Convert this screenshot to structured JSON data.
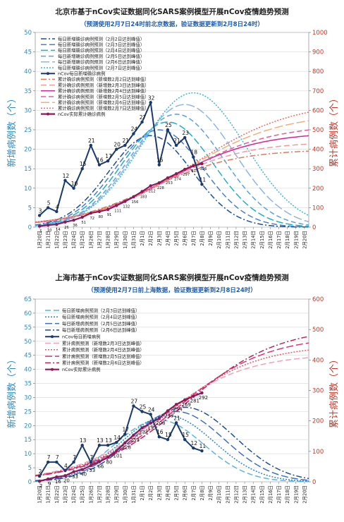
{
  "chart_data": [
    {
      "type": "line",
      "title": "北京市基于nCov实证数据同化SARS案例模型开展nCov疫情趋势预测",
      "subtitle": "（预测使用2月7日24时前北京数据，验证数据更新到2月8日24时）",
      "ylabel_left": "新增病例数（个）",
      "ylabel_right": "累计病例数（个）",
      "ylim_left": [
        0,
        50
      ],
      "yticks_left": [
        0,
        5,
        10,
        15,
        20,
        25,
        30,
        35,
        40,
        45,
        50
      ],
      "ylim_right": [
        0,
        1000
      ],
      "yticks_right": [
        0,
        100,
        200,
        300,
        400,
        500,
        600,
        700,
        800,
        900,
        1000
      ],
      "colors": {
        "left_axis": "#2e8bc0",
        "right_axis": "#c0392b"
      },
      "categories": [
        "1月20日",
        "1月21日",
        "1月22日",
        "1月23日",
        "1月24日",
        "1月25日",
        "1月26日",
        "1月27日",
        "1月28日",
        "1月29日",
        "1月30日",
        "1月31日",
        "2月1日",
        "2月2日",
        "2月3日",
        "2月4日",
        "2月5日",
        "2月6日",
        "2月7日",
        "2月8日",
        "2月9日",
        "2月10日",
        "2月11日",
        "2月12日",
        "2月13日",
        "2月14日",
        "2月15日",
        "2月16日",
        "2月17日",
        "2月18日",
        "2月19日",
        "2月20日"
      ],
      "actual_daily": {
        "name": "nCov每日新增确诊病例",
        "values": [
          3,
          5,
          4,
          12,
          10,
          15,
          21,
          16,
          17,
          20,
          21,
          24,
          27,
          32,
          16,
          25,
          21,
          23,
          18,
          11
        ],
        "labels": [
          "3",
          "5",
          "4",
          "12",
          "10",
          "15",
          "21",
          "16",
          "17",
          "20",
          "21",
          "24",
          "27",
          "32",
          "16",
          "25",
          "21",
          "23",
          "18",
          "11"
        ]
      },
      "actual_cumulative": {
        "name": "nCov实际累计确诊病例",
        "values": [
          5,
          10,
          14,
          26,
          36,
          51,
          72,
          80,
          91,
          111,
          132,
          156,
          183,
          212,
          228,
          253,
          274,
          297,
          315,
          326
        ],
        "labels": [
          "5",
          "10",
          "14",
          "26",
          "36",
          "51",
          "72",
          "80",
          "91",
          "111",
          "132",
          "156",
          "183",
          "212",
          "228",
          "253",
          "274",
          "297",
          "315",
          "326"
        ]
      },
      "series": [
        {
          "name": "每日新增确诊病例预测（2月2日达到峰值）",
          "axis": "left",
          "color": "#1a4f9c",
          "dash": "8 3 2 3",
          "peak": 23.5,
          "sigma": 4.9,
          "mu": 13
        },
        {
          "name": "每日新增确诊病例预测（2月3日达到峰值）",
          "axis": "left",
          "color": "#4a7fd0",
          "dash": "8 4",
          "peak": 25,
          "sigma": 5.1,
          "mu": 14
        },
        {
          "name": "每日新增确诊病例预测（2月4日达到峰值）",
          "axis": "left",
          "color": "#1fb0c8",
          "dash": "10 4",
          "peak": 27,
          "sigma": 5.3,
          "mu": 15
        },
        {
          "name": "每日新增确诊病例预测（2月5日达到峰值）",
          "axis": "left",
          "color": "#5aa0e8",
          "dash": "7 4",
          "peak": 29,
          "sigma": 5.5,
          "mu": 16
        },
        {
          "name": "每日新增确诊病例预测（2月6日达到峰值）",
          "axis": "left",
          "color": "#8fb4e6",
          "dash": "12 4",
          "peak": 31.5,
          "sigma": 5.8,
          "mu": 17
        },
        {
          "name": "每日新增确诊病例预测（2月7日达到峰值）",
          "axis": "left",
          "color": "#3cb6d8",
          "dash": "2 2",
          "peak": 34.5,
          "sigma": 6.1,
          "mu": 18
        },
        {
          "name": "累计确诊病例预测（新增数2月2日达到峰值）",
          "axis": "right",
          "color": "#e37a5a",
          "dash": "8 3 2 3",
          "final": 400,
          "k": 0.2,
          "mid": 13
        },
        {
          "name": "累计确诊病例预测（新增数2月3日达到峰值）",
          "axis": "right",
          "color": "#f29c9c",
          "dash": "8 4",
          "final": 440,
          "k": 0.2,
          "mid": 14
        },
        {
          "name": "累计确诊病例预测（新增数2月4日达到峰值）",
          "axis": "right",
          "color": "#d6249a",
          "dash": "",
          "final": 490,
          "k": 0.19,
          "mid": 15
        },
        {
          "name": "累计确诊病例预测（新增数2月5日达到峰值）",
          "axis": "right",
          "color": "#e85aa0",
          "dash": "7 4",
          "final": 530,
          "k": 0.18,
          "mid": 16
        },
        {
          "name": "累计确诊病例预测（新增数2月6日达到峰值）",
          "axis": "right",
          "color": "#f0b078",
          "dash": "12 4",
          "final": 590,
          "k": 0.175,
          "mid": 17
        },
        {
          "name": "累计确诊病例预测（新增数2月7日达到峰值）",
          "axis": "right",
          "color": "#f06a6a",
          "dash": "2 2",
          "final": 650,
          "k": 0.17,
          "mid": 18
        }
      ]
    },
    {
      "type": "line",
      "title": "上海市基于nCov实证数据同化SARS案例模型开展nCov疫情趋势预测",
      "subtitle": "（预测使用2月7日前上海数据，验证数据更新到2月8日24时）",
      "ylabel_left": "新增病例数（个）",
      "ylabel_right": "累计病例数（个）",
      "ylim_left": [
        0,
        65
      ],
      "yticks_left": [
        0,
        5,
        10,
        15,
        20,
        25,
        30,
        35,
        40,
        45,
        50,
        55,
        60,
        65
      ],
      "ylim_right": [
        0,
        600
      ],
      "yticks_right": [
        0,
        100,
        200,
        300,
        400,
        500,
        600
      ],
      "colors": {
        "left_axis": "#2e8bc0",
        "right_axis": "#c0392b"
      },
      "categories": [
        "1月20日",
        "1月21日",
        "1月22日",
        "1月23日",
        "1月24日",
        "1月25日",
        "1月26日",
        "1月27日",
        "1月28日",
        "1月29日",
        "1月30日",
        "1月31日",
        "2月1日",
        "2月2日",
        "2月3日",
        "2月4日",
        "2月5日",
        "2月6日",
        "2月7日",
        "2月8日",
        "2月9日",
        "2月10日",
        "2月11日",
        "2月12日",
        "2月13日",
        "2月14日",
        "2月15日",
        "2月16日",
        "2月17日",
        "2月18日",
        "2月19日",
        "2月20日"
      ],
      "actual_daily": {
        "name": "nCov每日新增病例",
        "values": [
          2,
          7,
          7,
          4,
          7,
          13,
          7,
          13,
          13,
          14,
          17,
          27,
          25,
          24,
          16,
          15,
          21,
          15,
          12,
          11
        ],
        "labels": [
          "2",
          "7",
          "7",
          "4",
          "7",
          "13",
          "7",
          "13",
          "13",
          "14",
          "17",
          "27",
          "25",
          "24",
          "16",
          "15",
          "21",
          "15",
          "12",
          "11"
        ]
      },
      "actual_cumulative": {
        "name": "nCov实际累计病例",
        "values": [
          2,
          9,
          16,
          20,
          33,
          40,
          53,
          66,
          80,
          101,
          128,
          153,
          177,
          193,
          208,
          233,
          254,
          269,
          281,
          292
        ],
        "labels": [
          "2",
          "9",
          "16",
          "20",
          "33",
          "40",
          "53",
          "66",
          "80",
          "101",
          "128",
          "153",
          "177",
          "193",
          "208",
          "233",
          "254",
          "269",
          "281",
          "292"
        ]
      },
      "series": [
        {
          "name": "每日新增病例预测（2月3日达到峰值）",
          "axis": "left",
          "color": "#5ab4e6",
          "dash": "8 4",
          "peak": 22,
          "sigma": 5.2,
          "mu": 14
        },
        {
          "name": "每日新增病例预测（2月4日达到峰值）",
          "axis": "left",
          "color": "#2e86c8",
          "dash": "2 2",
          "peak": 23.5,
          "sigma": 5.4,
          "mu": 15
        },
        {
          "name": "每日新增病例预测（2月5日达到峰值）",
          "axis": "left",
          "color": "#3c6fc8",
          "dash": "10 4",
          "peak": 25,
          "sigma": 5.6,
          "mu": 16
        },
        {
          "name": "每日新增病例预测（2月6日达到峰值）",
          "axis": "left",
          "color": "#1a4f9c",
          "dash": "8 3 2 3",
          "peak": 26.5,
          "sigma": 5.8,
          "mu": 17
        },
        {
          "name": "累计病例预测（新增数2月3日达到峰值）",
          "axis": "right",
          "color": "#f4a0b8",
          "dash": "8 4",
          "final": 420,
          "k": 0.2,
          "mid": 14
        },
        {
          "name": "累计病例预测（新增数2月4日达到峰值）",
          "axis": "right",
          "color": "#e85a5a",
          "dash": "2 2",
          "final": 450,
          "k": 0.195,
          "mid": 15
        },
        {
          "name": "累计病例预测（新增数2月5日达到峰值）",
          "axis": "right",
          "color": "#e0307a",
          "dash": "10 4",
          "final": 480,
          "k": 0.19,
          "mid": 16
        },
        {
          "name": "累计病例预测（新增数2月6日达到峰值）",
          "axis": "right",
          "color": "#b8265a",
          "dash": "8 3 2 3",
          "final": 510,
          "k": 0.185,
          "mid": 17
        }
      ]
    }
  ]
}
